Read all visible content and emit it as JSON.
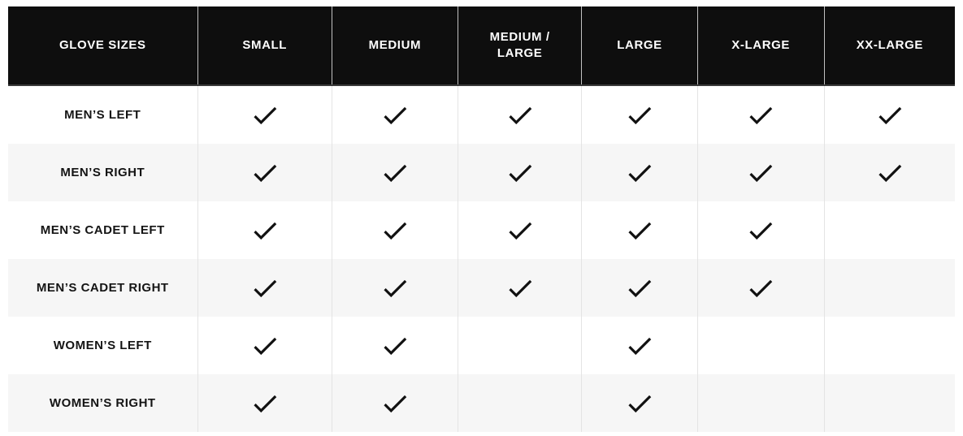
{
  "colors": {
    "header_bg": "#0e0e0e",
    "header_text": "#ffffff",
    "row_alt_bg": "#f6f6f6",
    "grid_line": "#e4e4e4",
    "check_color": "#111111"
  },
  "icons": {
    "check": "check-icon"
  },
  "chart_data": {
    "type": "table",
    "title": "GLOVE SIZES",
    "legend_position": "none",
    "grid": "vertical-only",
    "columns": [
      "GLOVE SIZES",
      "SMALL",
      "MEDIUM",
      "MEDIUM / LARGE",
      "LARGE",
      "X-LARGE",
      "XX-LARGE"
    ],
    "rows": [
      {
        "label": "MEN’S LEFT",
        "available": [
          true,
          true,
          true,
          true,
          true,
          true
        ]
      },
      {
        "label": "MEN’S RIGHT",
        "available": [
          true,
          true,
          true,
          true,
          true,
          true
        ]
      },
      {
        "label": "MEN’S CADET LEFT",
        "available": [
          true,
          true,
          true,
          true,
          true,
          false
        ]
      },
      {
        "label": "MEN’S CADET RIGHT",
        "available": [
          true,
          true,
          true,
          true,
          true,
          false
        ]
      },
      {
        "label": "WOMEN’S LEFT",
        "available": [
          true,
          true,
          false,
          true,
          false,
          false
        ]
      },
      {
        "label": "WOMEN’S RIGHT",
        "available": [
          true,
          true,
          false,
          true,
          false,
          false
        ]
      }
    ]
  }
}
